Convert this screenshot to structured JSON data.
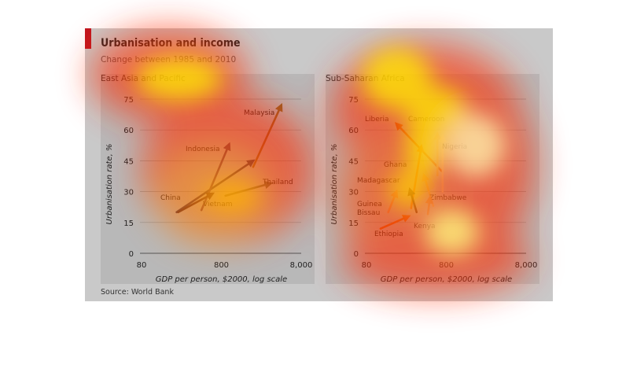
{
  "figure": {
    "title": "Urbanisation and income",
    "subtitle": "Change between 1985 and 2010",
    "source": "Source: World Bank"
  },
  "colors": {
    "accent": "#c0161e",
    "panel_bg": "#b8b8b8",
    "figure_bg": "#c9c9c9"
  },
  "chart_data": [
    {
      "type": "line",
      "title": "East Asia and Pacific",
      "xlabel": "GDP per person, $2000, log scale",
      "ylabel": "Urbanisation rate, %",
      "x_scale": "log",
      "x_ticks": [
        80,
        800,
        8000
      ],
      "x_tick_labels": [
        "80",
        "800",
        "8,000"
      ],
      "ylim": [
        0,
        75
      ],
      "y_ticks": [
        0,
        15,
        30,
        45,
        60,
        75
      ],
      "grid": true,
      "series": [
        {
          "name": "China",
          "color": "#3b2f4f",
          "points": [
            [
              220,
              20
            ],
            [
              2000,
              45
            ]
          ]
        },
        {
          "name": "Indonesia",
          "color": "#5c3a5a",
          "points": [
            [
              450,
              21
            ],
            [
              1000,
              53
            ]
          ]
        },
        {
          "name": "Vietnam",
          "color": "#3d2230",
          "points": [
            [
              230,
              20
            ],
            [
              620,
              29
            ]
          ]
        },
        {
          "name": "Malaysia",
          "color": "#8f6427",
          "points": [
            [
              2000,
              42
            ],
            [
              4500,
              72
            ]
          ]
        },
        {
          "name": "Thailand",
          "color": "#5a5a4a",
          "points": [
            [
              900,
              28
            ],
            [
              3300,
              34
            ]
          ]
        }
      ]
    },
    {
      "type": "line",
      "title": "Sub-Saharan Africa",
      "xlabel": "GDP per person, $2000, log scale",
      "ylabel": "Urbanisation rate, %",
      "x_scale": "log",
      "x_ticks": [
        80,
        800,
        8000
      ],
      "x_tick_labels": [
        "80",
        "800",
        "8,000"
      ],
      "ylim": [
        0,
        75
      ],
      "y_ticks": [
        0,
        15,
        30,
        45,
        60,
        75
      ],
      "grid": true,
      "series": [
        {
          "name": "Liberia",
          "color": "#c04a18",
          "points": [
            [
              700,
              40
            ],
            [
              190,
              63
            ]
          ]
        },
        {
          "name": "Cameroon",
          "color": "#c8a96a",
          "points": [
            [
              620,
              38
            ],
            [
              620,
              58
            ]
          ]
        },
        {
          "name": "Nigeria",
          "color": "#d4c8a0",
          "points": [
            [
              720,
              30
            ],
            [
              720,
              57
            ]
          ]
        },
        {
          "name": "Ghana",
          "color": "#d4661c",
          "points": [
            [
              290,
              22
            ],
            [
              390,
              52
            ]
          ]
        },
        {
          "name": "Madagascar",
          "color": "#3a1e16",
          "points": [
            [
              340,
              20
            ],
            [
              280,
              31
            ]
          ]
        },
        {
          "name": "Zimbabwe",
          "color": "#d4a870",
          "points": [
            [
              550,
              23
            ],
            [
              420,
              38
            ]
          ]
        },
        {
          "name": "Guinea Bissau",
          "color": "#d48a6a",
          "points": [
            [
              150,
              20
            ],
            [
              190,
              30
            ]
          ]
        },
        {
          "name": "Ethiopia",
          "color": "#d0641a",
          "points": [
            [
              120,
              12
            ],
            [
              270,
              18
            ]
          ]
        },
        {
          "name": "Kenya",
          "color": "#c88a5a",
          "points": [
            [
              470,
              19
            ],
            [
              500,
              27
            ]
          ]
        }
      ]
    }
  ]
}
